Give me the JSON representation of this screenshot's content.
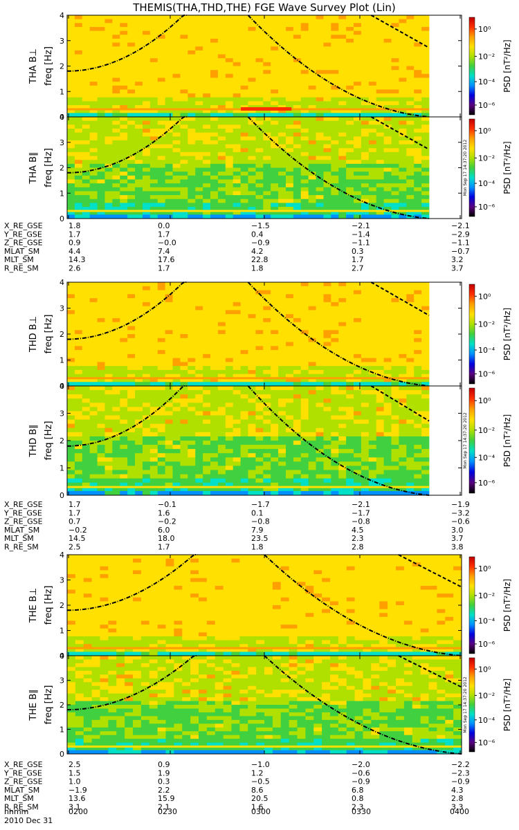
{
  "title": "THEMIS(THA,THD,THE) FGE Wave Survey Plot (Lin)",
  "freq_label": "freq [Hz]",
  "psd_label": "PSD [nT²/Hz]",
  "colorbar_ticks": [
    "10⁰",
    "10⁻²",
    "10⁻⁴",
    "10⁻⁶"
  ],
  "timestamp_text": "Mon Sep 17 14:37:20 2012",
  "date_label": "2010 Dec 31",
  "time_axis": {
    "label": "hhmm",
    "ticks": [
      "0200",
      "0230",
      "0300",
      "0330",
      "0400"
    ]
  },
  "colors": {
    "background": "#ffffff",
    "curve": "#000000",
    "colormap": [
      "#000000",
      "#5a0080",
      "#0000e0",
      "#0090ff",
      "#00e0c8",
      "#40d040",
      "#b0e000",
      "#ffe000",
      "#ffa000",
      "#ff3000",
      "#c00000"
    ]
  },
  "chart_data": [
    {
      "type": "heatmap",
      "probe": "THA",
      "panels": [
        {
          "label": "THA B⊥",
          "ylim": [
            0,
            4
          ],
          "yticks": [
            "0",
            "1",
            "2",
            "3",
            "4"
          ]
        },
        {
          "label": "THA B∥",
          "ylim": [
            0,
            4
          ],
          "yticks": [
            "0",
            "1",
            "2",
            "3",
            "4"
          ]
        }
      ],
      "x": [
        "0200",
        "0230",
        "0300",
        "0330",
        "0400"
      ],
      "orbit_table": [
        {
          "name": "X_RE_GSE",
          "values": [
            "1.8",
            "0.0",
            "−1.5",
            "−2.1",
            "−2.1"
          ]
        },
        {
          "name": "Y_RE_GSE",
          "values": [
            "1.7",
            "1.7",
            "0.4",
            "−1.4",
            "−2.9"
          ]
        },
        {
          "name": "Z_RE_GSE",
          "values": [
            "0.9",
            "−0.0",
            "−0.9",
            "−1.1",
            "−1.1"
          ]
        },
        {
          "name": "MLAT_SM",
          "values": [
            "4.4",
            "7.4",
            "4.2",
            "0.3",
            "−0.7"
          ]
        },
        {
          "name": "MLT_SM",
          "values": [
            "14.3",
            "17.6",
            "22.8",
            "1.7",
            "3.2"
          ]
        },
        {
          "name": "R_RE_SM",
          "values": [
            "2.6",
            "1.7",
            "1.8",
            "2.7",
            "3.7"
          ]
        }
      ]
    },
    {
      "type": "heatmap",
      "probe": "THD",
      "panels": [
        {
          "label": "THD B⊥",
          "ylim": [
            0,
            4
          ],
          "yticks": [
            "0",
            "1",
            "2",
            "3",
            "4"
          ]
        },
        {
          "label": "THD B∥",
          "ylim": [
            0,
            4
          ],
          "yticks": [
            "0",
            "1",
            "2",
            "3",
            "4"
          ]
        }
      ],
      "x": [
        "0200",
        "0230",
        "0300",
        "0330",
        "0400"
      ],
      "orbit_table": [
        {
          "name": "X_RE_GSE",
          "values": [
            "1.7",
            "−0.1",
            "−1.7",
            "−2.1",
            "−1.9"
          ]
        },
        {
          "name": "Y_RE_GSE",
          "values": [
            "1.7",
            "1.6",
            "0.1",
            "−1.7",
            "−3.2"
          ]
        },
        {
          "name": "Z_RE_GSE",
          "values": [
            "0.7",
            "−0.2",
            "−0.8",
            "−0.8",
            "−0.6"
          ]
        },
        {
          "name": "MLAT_SM",
          "values": [
            "−0.2",
            "6.0",
            "7.9",
            "4.5",
            "3.0"
          ]
        },
        {
          "name": "MLT_SM",
          "values": [
            "14.5",
            "18.0",
            "23.5",
            "2.3",
            "3.7"
          ]
        },
        {
          "name": "R_RE_SM",
          "values": [
            "2.5",
            "1.7",
            "1.8",
            "2.8",
            "3.8"
          ]
        }
      ]
    },
    {
      "type": "heatmap",
      "probe": "THE",
      "panels": [
        {
          "label": "THE B⊥",
          "ylim": [
            0,
            4
          ],
          "yticks": [
            "0",
            "1",
            "2",
            "3",
            "4"
          ]
        },
        {
          "label": "THE B∥",
          "ylim": [
            0,
            4
          ],
          "yticks": [
            "0",
            "1",
            "2",
            "3",
            "4"
          ]
        }
      ],
      "x": [
        "0200",
        "0230",
        "0300",
        "0330",
        "0400"
      ],
      "orbit_table": [
        {
          "name": "X_RE_GSE",
          "values": [
            "2.5",
            "0.9",
            "−1.0",
            "−2.0",
            "−2.2"
          ]
        },
        {
          "name": "Y_RE_GSE",
          "values": [
            "1.5",
            "1.9",
            "1.2",
            "−0.6",
            "−2.3"
          ]
        },
        {
          "name": "Z_RE_GSE",
          "values": [
            "1.0",
            "0.3",
            "−0.5",
            "−0.9",
            "−0.9"
          ]
        },
        {
          "name": "MLAT_SM",
          "values": [
            "−1.9",
            "2.2",
            "8.6",
            "6.8",
            "4.3"
          ]
        },
        {
          "name": "MLT_SM",
          "values": [
            "13.6",
            "15.9",
            "20.5",
            "0.8",
            "2.8"
          ]
        },
        {
          "name": "R_RE_SM",
          "values": [
            "3.1",
            "2.1",
            "1.6",
            "2.3",
            "3.3"
          ]
        }
      ]
    }
  ]
}
